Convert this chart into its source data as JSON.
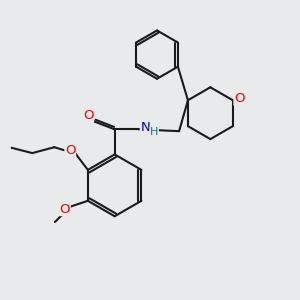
{
  "background_color": "#e8eaeb",
  "bond_color": "#1a1a1a",
  "bond_width": 1.5,
  "atom_colors": {
    "O": "#ff0000",
    "N": "#0000cc",
    "H": "#008080"
  },
  "fig_size": [
    3.0,
    3.0
  ],
  "dpi": 100
}
